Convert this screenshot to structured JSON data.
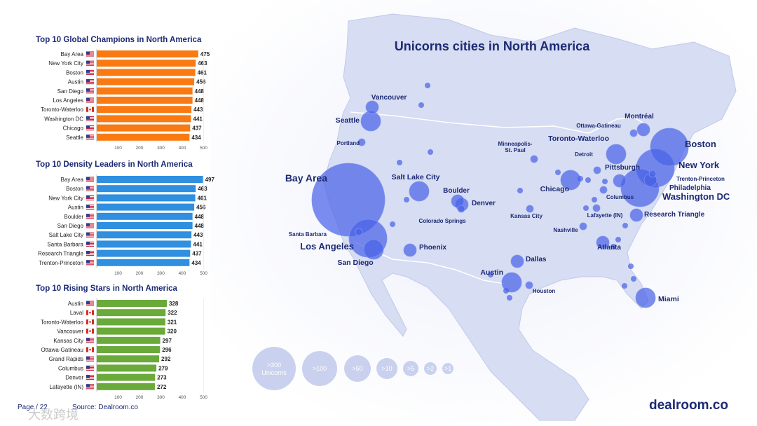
{
  "map": {
    "title": "Unicorns cities in North America",
    "colors": {
      "bubble": "#4a63e6",
      "land": "#d9def2",
      "title": "#1c2a74"
    },
    "cities": [
      {
        "name": "Bay Area",
        "size": "xl"
      },
      {
        "name": "New York",
        "size": "l"
      },
      {
        "name": "Boston",
        "size": "l"
      },
      {
        "name": "Los Angeles",
        "size": "l"
      },
      {
        "name": "Washington DC",
        "size": "l"
      },
      {
        "name": "Seattle",
        "size": "m"
      },
      {
        "name": "San Diego",
        "size": "m"
      },
      {
        "name": "Chicago",
        "size": "m"
      },
      {
        "name": "Austin",
        "size": "m"
      },
      {
        "name": "Miami",
        "size": "m"
      },
      {
        "name": "Salt Lake City",
        "size": "m"
      },
      {
        "name": "Toronto-Waterloo",
        "size": "m"
      },
      {
        "name": "Dallas",
        "size": "s"
      },
      {
        "name": "Denver",
        "size": "s"
      },
      {
        "name": "Boulder",
        "size": "s"
      },
      {
        "name": "Phoenix",
        "size": "s"
      },
      {
        "name": "Atlanta",
        "size": "s"
      },
      {
        "name": "Philadelphia",
        "size": "s"
      },
      {
        "name": "Research Triangle",
        "size": "s"
      },
      {
        "name": "Pittsburgh",
        "size": "s"
      },
      {
        "name": "Montréal",
        "size": "s"
      },
      {
        "name": "Vancouver",
        "size": "s"
      },
      {
        "name": "Portland",
        "size": "xs"
      },
      {
        "name": "Santa Barbara",
        "size": "xs"
      },
      {
        "name": "Detroit",
        "size": "xs"
      },
      {
        "name": "Ottawa-Gatineau",
        "size": "xs"
      },
      {
        "name": "Trenton-Princeton",
        "size": "xs"
      },
      {
        "name": "Minneapolis-\nSt. Paul",
        "size": "xs"
      },
      {
        "name": "Kansas City",
        "size": "xs"
      },
      {
        "name": "Nashville",
        "size": "xs"
      },
      {
        "name": "Columbus",
        "size": "xs"
      },
      {
        "name": "Lafayette (IN)",
        "size": "xs"
      },
      {
        "name": "Colorado Springs",
        "size": "xs"
      },
      {
        "name": "Houston",
        "size": "xs"
      }
    ],
    "legend": [
      ">300\nUnicorns",
      ">100",
      ">50",
      ">10",
      ">5",
      ">2",
      ">1"
    ]
  },
  "chart_data": [
    {
      "type": "bar",
      "title": "Top 10 Global Champions in North America",
      "color": "#f97a12",
      "categories": [
        "Bay Area",
        "New York City",
        "Boston",
        "Austin",
        "San Diego",
        "Los Angeles",
        "Toronto-Waterloo",
        "Washington DC",
        "Chicago",
        "Seattle"
      ],
      "flags": [
        "us",
        "us",
        "us",
        "us",
        "us",
        "us",
        "ca",
        "us",
        "us",
        "us"
      ],
      "values": [
        475,
        463,
        461,
        456,
        448,
        448,
        443,
        441,
        437,
        434
      ],
      "xticks": [
        100,
        200,
        300,
        400,
        500
      ],
      "xlim": [
        0,
        500
      ]
    },
    {
      "type": "bar",
      "title": "Top 10 Density Leaders in North America",
      "color": "#2f8fe0",
      "categories": [
        "Bay Area",
        "Boston",
        "New York City",
        "Austin",
        "Boulder",
        "San Diego",
        "Salt Lake City",
        "Santa Barbara",
        "Research Triangle",
        "Trenton-Princeton"
      ],
      "flags": [
        "us",
        "us",
        "us",
        "us",
        "us",
        "us",
        "us",
        "us",
        "us",
        "us"
      ],
      "values": [
        497,
        463,
        461,
        456,
        448,
        448,
        443,
        441,
        437,
        434
      ],
      "xticks": [
        100,
        200,
        300,
        400,
        500
      ],
      "xlim": [
        0,
        500
      ]
    },
    {
      "type": "bar",
      "title": "Top 10 Rising Stars in North America",
      "color": "#6aaa3a",
      "categories": [
        "Austin",
        "Laval",
        "Toronto-Waterloo",
        "Vancouver",
        "Kansas City",
        "Ottawa-Gatineau",
        "Grand Rapids",
        "Columbus",
        "Denver",
        "Lafayette (IN)"
      ],
      "flags": [
        "us",
        "ca",
        "ca",
        "ca",
        "us",
        "ca",
        "us",
        "us",
        "us",
        "us"
      ],
      "values": [
        328,
        322,
        321,
        320,
        297,
        296,
        292,
        279,
        273,
        272
      ],
      "xticks": [
        100,
        200,
        300,
        400,
        500
      ],
      "xlim": [
        0,
        500
      ]
    }
  ],
  "footer": {
    "page": "Page / 22",
    "source": "Source: Dealroom.co",
    "brand": "dealroom.co",
    "watermark": "大数跨境"
  }
}
